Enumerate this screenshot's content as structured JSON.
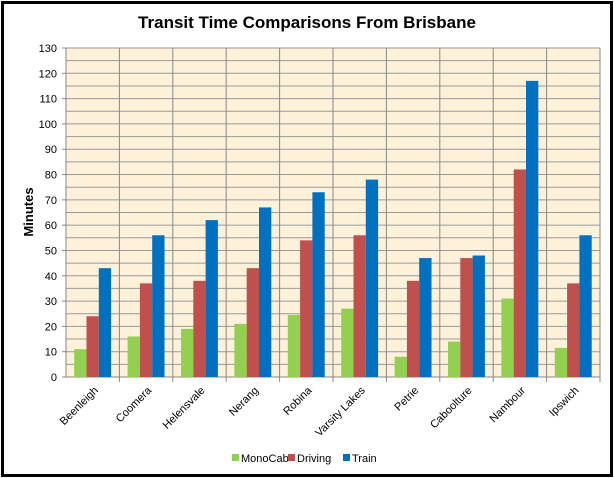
{
  "chart_data": {
    "type": "bar",
    "title": "Transit Time Comparisons  From Brisbane",
    "xlabel": "",
    "ylabel": "Minutes",
    "ylim": [
      0,
      130
    ],
    "yticks": [
      0,
      10,
      20,
      30,
      40,
      50,
      60,
      70,
      80,
      90,
      100,
      110,
      120,
      130
    ],
    "grid": "horizontal minor every 5, vertical category separators",
    "legend": "bottom",
    "categories": [
      "Beenleigh",
      "Coomera",
      "Helensvale",
      "Nerang",
      "Robina",
      "Varsity Lakes",
      "Petrie",
      "Caboolture",
      "Nambour",
      "Ipswich"
    ],
    "series": [
      {
        "name": "MonoCab",
        "color": "#92d050",
        "values": [
          11,
          16,
          19,
          21,
          24.5,
          27,
          8,
          14,
          31,
          11.5
        ]
      },
      {
        "name": "Driving",
        "color": "#c0504d",
        "values": [
          24,
          37,
          38,
          43,
          54,
          56,
          38,
          47,
          82,
          37
        ]
      },
      {
        "name": "Train",
        "color": "#0070c0",
        "values": [
          43,
          56,
          62,
          67,
          73,
          78,
          47,
          48,
          117,
          56
        ]
      }
    ],
    "plot_background": "#fdf1da"
  }
}
